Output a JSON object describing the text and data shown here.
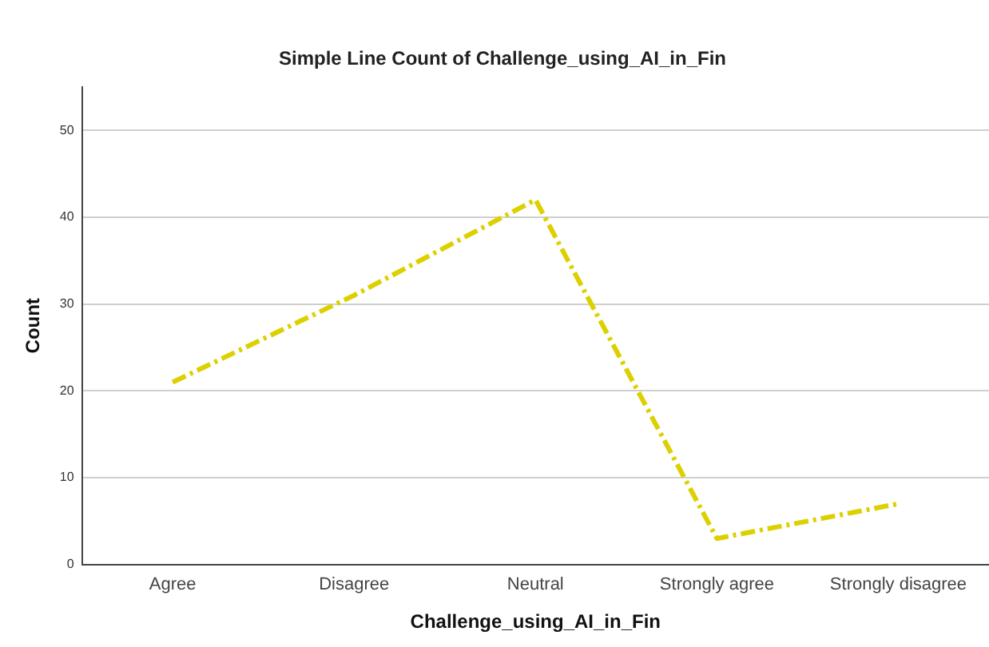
{
  "chart_data": {
    "type": "line",
    "title": "Simple Line Count of Challenge_using_AI_in_Fin",
    "xlabel": "Challenge_using_AI_in_Fin",
    "ylabel": "Count",
    "categories": [
      "Agree",
      "Disagree",
      "Neutral",
      "Strongly agree",
      "Strongly disagree"
    ],
    "series": [
      {
        "color": "#ddd000",
        "values": [
          21,
          31,
          42,
          3,
          7
        ]
      }
    ],
    "ylim": [
      0,
      55
    ],
    "yticks": [
      0,
      10,
      20,
      30,
      40,
      50
    ],
    "grid": "y",
    "legend": false,
    "marker": "none",
    "line_style": "dashed"
  }
}
